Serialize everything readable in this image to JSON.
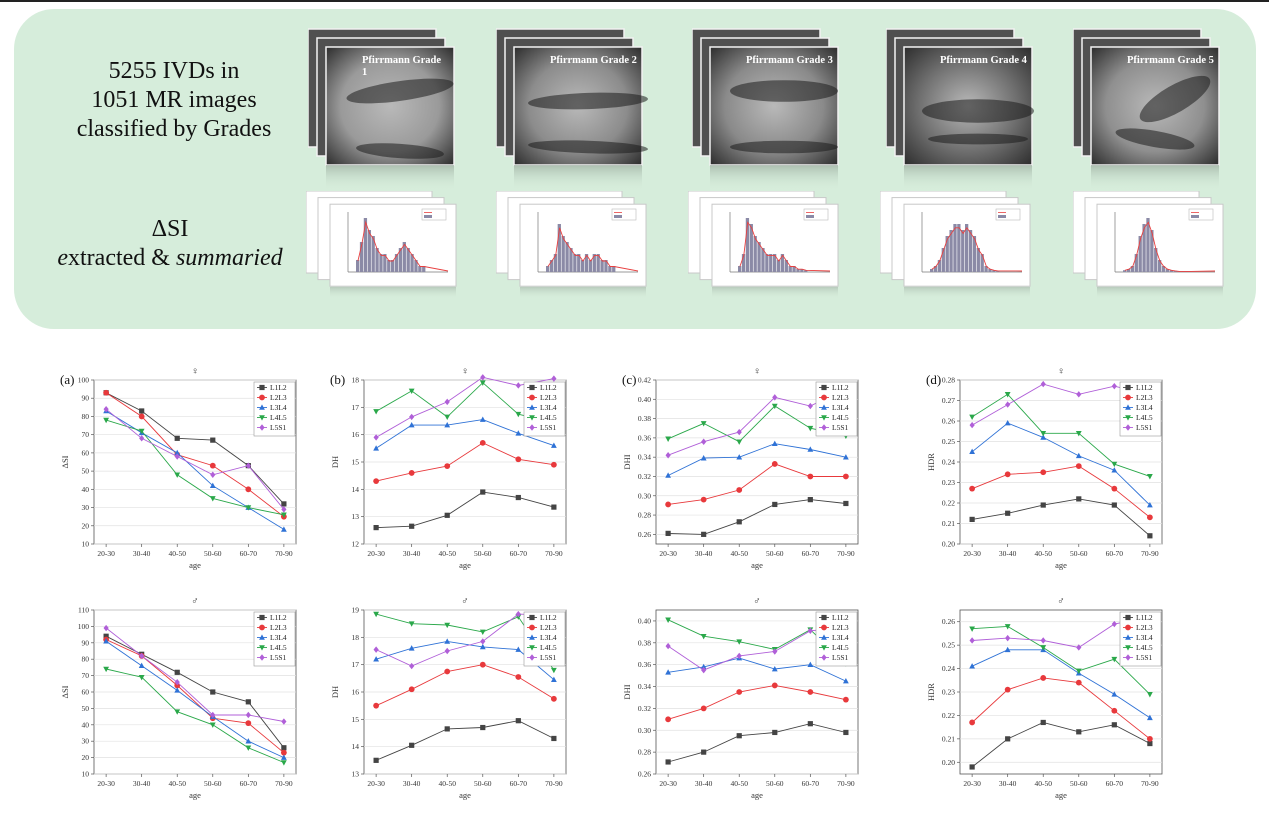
{
  "banner": {
    "mr_lines": [
      "5255 IVDs in",
      "1051 MR images",
      "classified by Grades"
    ],
    "si_line1": "ΔSI",
    "si_line2_a": "e",
    "si_line2_b": "xtracted & ",
    "si_line2_c": "summaried",
    "grades": [
      "Pfirrmann Grade 1",
      "Pfirrmann Grade 2",
      "Pfirrmann Grade 3",
      "Pfirrmann Grade 4",
      "Pfirrmann Grade 5"
    ]
  },
  "colors": {
    "L1L2": "#444444",
    "L2L3": "#e8393c",
    "L3L4": "#2f72d6",
    "L4L5": "#2aa84a",
    "L5S1": "#b05fd8",
    "banner_bg": "#d6eddb",
    "hist_bar": "#8b8aa6",
    "hist_line": "#e84040"
  },
  "chart_data": [
    {
      "type": "line",
      "panel": "(a)",
      "title": "♀",
      "xlabel": "age",
      "ylabel": "ΔSI",
      "categories": [
        "20-30",
        "30-40",
        "40-50",
        "50-60",
        "60-70",
        "70-90"
      ],
      "ylim": [
        10,
        100
      ],
      "yticks": [
        10,
        20,
        30,
        40,
        50,
        60,
        70,
        80,
        90,
        100
      ],
      "grid": "horizontal",
      "legend": "top-right",
      "series": [
        {
          "name": "L1L2",
          "values": [
            93,
            83,
            68,
            67,
            53,
            32
          ]
        },
        {
          "name": "L2L3",
          "values": [
            93,
            80,
            59,
            53,
            40,
            25
          ]
        },
        {
          "name": "L3L4",
          "values": [
            83,
            71,
            60,
            42,
            30,
            18
          ]
        },
        {
          "name": "L4L5",
          "values": [
            78,
            72,
            48,
            35,
            30,
            26
          ]
        },
        {
          "name": "L5S1",
          "values": [
            84,
            68,
            58,
            48,
            53,
            29
          ]
        }
      ]
    },
    {
      "type": "line",
      "panel": "(b)",
      "title": "♀",
      "xlabel": "age",
      "ylabel": "DH",
      "categories": [
        "20-30",
        "30-40",
        "40-50",
        "50-60",
        "60-70",
        "70-90"
      ],
      "ylim": [
        12,
        18
      ],
      "yticks": [
        12,
        13,
        14,
        15,
        16,
        17,
        18
      ],
      "grid": "horizontal",
      "legend": "top-right",
      "series": [
        {
          "name": "L1L2",
          "values": [
            12.6,
            12.65,
            13.05,
            13.9,
            13.7,
            13.35
          ]
        },
        {
          "name": "L2L3",
          "values": [
            14.3,
            14.6,
            14.85,
            15.7,
            15.1,
            14.9
          ]
        },
        {
          "name": "L3L4",
          "values": [
            15.5,
            16.35,
            16.35,
            16.55,
            16.05,
            15.6
          ]
        },
        {
          "name": "L4L5",
          "values": [
            16.85,
            17.6,
            16.65,
            17.9,
            16.75,
            16.45
          ]
        },
        {
          "name": "L5S1",
          "values": [
            15.9,
            16.65,
            17.2,
            18.1,
            17.8,
            18.05
          ]
        }
      ]
    },
    {
      "type": "line",
      "panel": "(c)",
      "title": "♀",
      "xlabel": "age",
      "ylabel": "DHI",
      "categories": [
        "20-30",
        "30-40",
        "40-50",
        "50-60",
        "60-70",
        "70-90"
      ],
      "ylim": [
        0.25,
        0.42
      ],
      "yticks": [
        0.26,
        0.28,
        0.3,
        0.32,
        0.34,
        0.36,
        0.38,
        0.4,
        0.42
      ],
      "grid": "horizontal",
      "legend": "top-right",
      "series": [
        {
          "name": "L1L2",
          "values": [
            0.261,
            0.26,
            0.273,
            0.291,
            0.296,
            0.292
          ]
        },
        {
          "name": "L2L3",
          "values": [
            0.291,
            0.296,
            0.306,
            0.333,
            0.32,
            0.32
          ]
        },
        {
          "name": "L3L4",
          "values": [
            0.321,
            0.339,
            0.34,
            0.354,
            0.348,
            0.34
          ]
        },
        {
          "name": "L4L5",
          "values": [
            0.359,
            0.375,
            0.356,
            0.393,
            0.37,
            0.362
          ]
        },
        {
          "name": "L5S1",
          "values": [
            0.342,
            0.356,
            0.366,
            0.402,
            0.393,
            0.411
          ]
        }
      ]
    },
    {
      "type": "line",
      "panel": "(d)",
      "title": "♀",
      "xlabel": "age",
      "ylabel": "HDR",
      "categories": [
        "20-30",
        "30-40",
        "40-50",
        "50-60",
        "60-70",
        "70-90"
      ],
      "ylim": [
        0.2,
        0.28
      ],
      "yticks": [
        0.2,
        0.21,
        0.22,
        0.23,
        0.24,
        0.25,
        0.26,
        0.27,
        0.28
      ],
      "grid": "horizontal",
      "legend": "top-right",
      "series": [
        {
          "name": "L1L2",
          "values": [
            0.212,
            0.215,
            0.219,
            0.222,
            0.219,
            0.204
          ]
        },
        {
          "name": "L2L3",
          "values": [
            0.227,
            0.234,
            0.235,
            0.238,
            0.227,
            0.213
          ]
        },
        {
          "name": "L3L4",
          "values": [
            0.245,
            0.259,
            0.252,
            0.243,
            0.236,
            0.219
          ]
        },
        {
          "name": "L4L5",
          "values": [
            0.262,
            0.273,
            0.254,
            0.254,
            0.239,
            0.233
          ]
        },
        {
          "name": "L5S1",
          "values": [
            0.258,
            0.268,
            0.278,
            0.273,
            0.277,
            0.273
          ]
        }
      ]
    },
    {
      "type": "line",
      "panel": "",
      "title": "♂",
      "xlabel": "age",
      "ylabel": "ΔSI",
      "categories": [
        "20-30",
        "30-40",
        "40-50",
        "50-60",
        "60-70",
        "70-90"
      ],
      "ylim": [
        10,
        110
      ],
      "yticks": [
        10,
        20,
        30,
        40,
        50,
        60,
        70,
        80,
        90,
        100,
        110
      ],
      "grid": "horizontal",
      "legend": "top-right",
      "series": [
        {
          "name": "L1L2",
          "values": [
            94,
            83,
            72,
            60,
            54,
            26
          ]
        },
        {
          "name": "L2L3",
          "values": [
            92,
            82,
            64,
            44,
            41,
            23
          ]
        },
        {
          "name": "L3L4",
          "values": [
            91,
            76,
            61,
            45,
            30,
            20
          ]
        },
        {
          "name": "L4L5",
          "values": [
            74,
            69,
            48,
            40,
            26,
            17
          ]
        },
        {
          "name": "L5S1",
          "values": [
            99,
            82,
            66,
            46,
            46,
            42
          ]
        }
      ]
    },
    {
      "type": "line",
      "panel": "",
      "title": "♂",
      "xlabel": "age",
      "ylabel": "DH",
      "categories": [
        "20-30",
        "30-40",
        "40-50",
        "50-60",
        "60-70",
        "70-90"
      ],
      "ylim": [
        13,
        19
      ],
      "yticks": [
        13,
        14,
        15,
        16,
        17,
        18,
        19
      ],
      "grid": "horizontal",
      "legend": "top-right",
      "series": [
        {
          "name": "L1L2",
          "values": [
            13.5,
            14.05,
            14.65,
            14.7,
            14.95,
            14.3
          ]
        },
        {
          "name": "L2L3",
          "values": [
            15.5,
            16.1,
            16.75,
            17.0,
            16.55,
            15.75
          ]
        },
        {
          "name": "L3L4",
          "values": [
            17.2,
            17.6,
            17.85,
            17.65,
            17.55,
            16.45
          ]
        },
        {
          "name": "L4L5",
          "values": [
            18.85,
            18.5,
            18.45,
            18.2,
            18.75,
            16.8
          ]
        },
        {
          "name": "L5S1",
          "values": [
            17.55,
            16.95,
            17.5,
            17.85,
            18.85,
            18.8
          ]
        }
      ]
    },
    {
      "type": "line",
      "panel": "",
      "title": "♂",
      "xlabel": "age",
      "ylabel": "DHI",
      "categories": [
        "20-30",
        "30-40",
        "40-50",
        "50-60",
        "60-70",
        "70-90"
      ],
      "ylim": [
        0.26,
        0.41
      ],
      "yticks": [
        0.26,
        0.28,
        0.3,
        0.32,
        0.34,
        0.36,
        0.38,
        0.4
      ],
      "grid": "horizontal",
      "legend": "top-right",
      "series": [
        {
          "name": "L1L2",
          "values": [
            0.271,
            0.28,
            0.295,
            0.298,
            0.306,
            0.298
          ]
        },
        {
          "name": "L2L3",
          "values": [
            0.31,
            0.32,
            0.335,
            0.341,
            0.335,
            0.328
          ]
        },
        {
          "name": "L3L4",
          "values": [
            0.353,
            0.358,
            0.366,
            0.356,
            0.36,
            0.345
          ]
        },
        {
          "name": "L4L5",
          "values": [
            0.401,
            0.386,
            0.381,
            0.374,
            0.392,
            0.361
          ]
        },
        {
          "name": "L5S1",
          "values": [
            0.377,
            0.355,
            0.368,
            0.372,
            0.391,
            0.394
          ]
        }
      ]
    },
    {
      "type": "line",
      "panel": "",
      "title": "♂",
      "xlabel": "age",
      "ylabel": "HDR",
      "categories": [
        "20-30",
        "30-40",
        "40-50",
        "50-60",
        "60-70",
        "70-90"
      ],
      "ylim": [
        0.195,
        0.265
      ],
      "yticks": [
        0.2,
        0.21,
        0.22,
        0.23,
        0.24,
        0.25,
        0.26
      ],
      "grid": "horizontal",
      "legend": "top-right",
      "series": [
        {
          "name": "L1L2",
          "values": [
            0.198,
            0.21,
            0.217,
            0.213,
            0.216,
            0.208
          ]
        },
        {
          "name": "L2L3",
          "values": [
            0.217,
            0.231,
            0.236,
            0.234,
            0.222,
            0.21
          ]
        },
        {
          "name": "L3L4",
          "values": [
            0.241,
            0.248,
            0.248,
            0.238,
            0.229,
            0.219
          ]
        },
        {
          "name": "L4L5",
          "values": [
            0.257,
            0.258,
            0.249,
            0.239,
            0.244,
            0.229
          ]
        },
        {
          "name": "L5S1",
          "values": [
            0.252,
            0.253,
            0.252,
            0.249,
            0.259,
            0.262
          ]
        }
      ]
    }
  ]
}
